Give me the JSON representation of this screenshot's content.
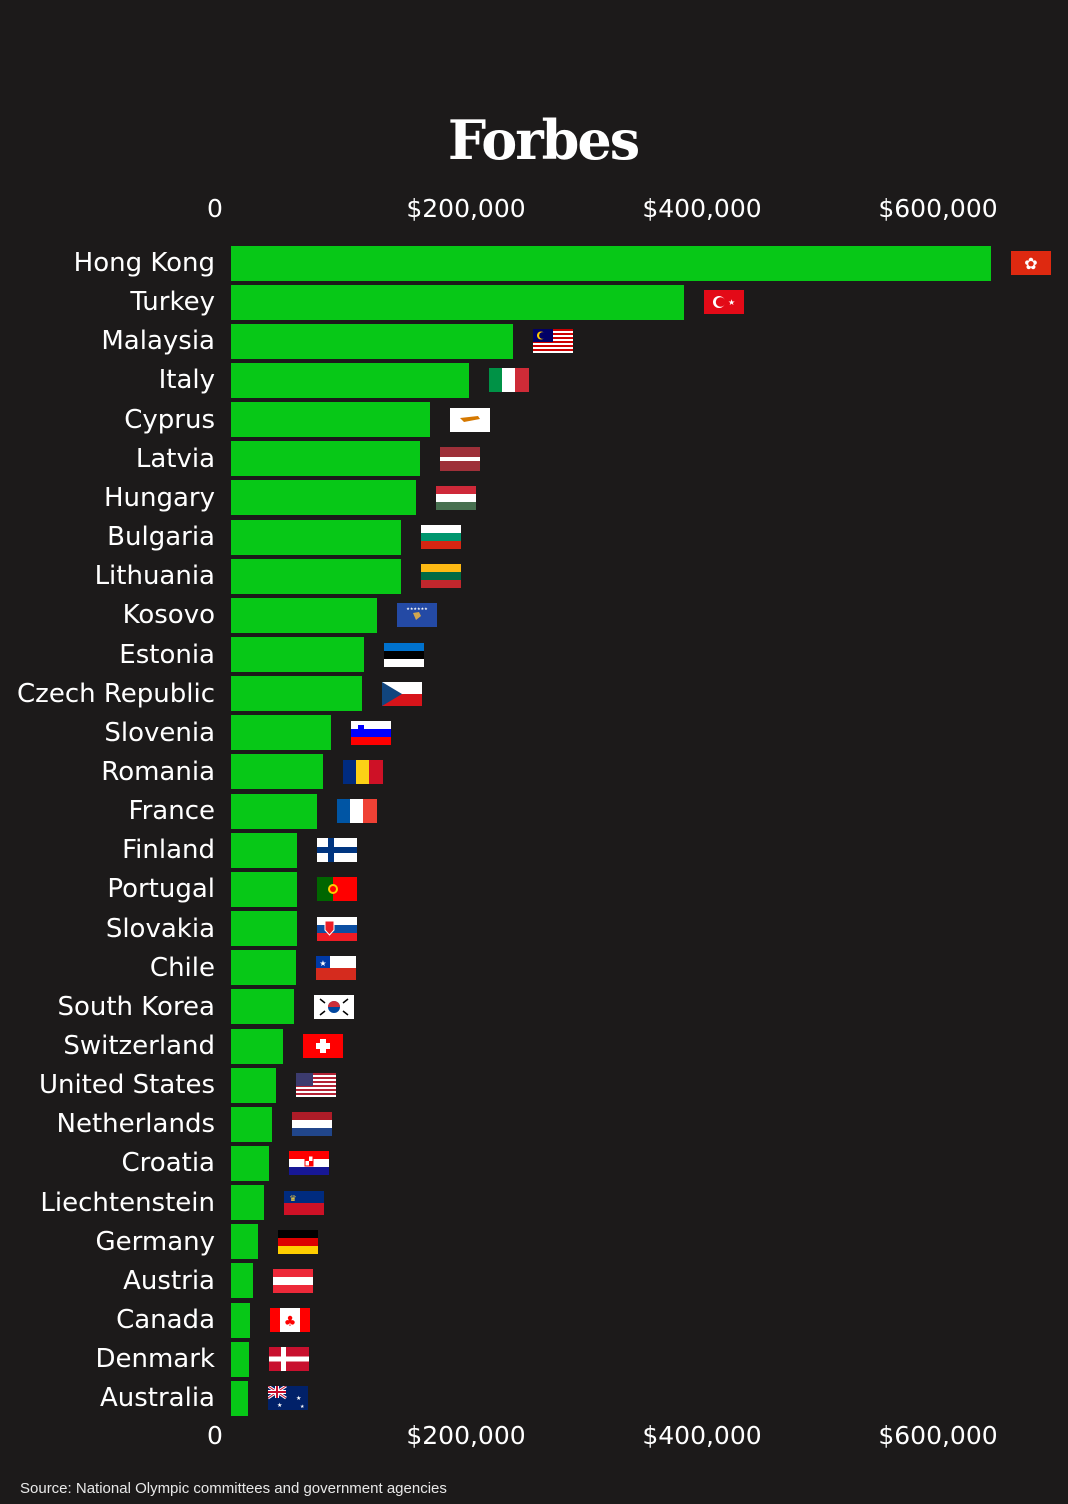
{
  "header": {
    "logo": "Forbes"
  },
  "source": "Source: National Olympic committees and government agencies",
  "chart_data": {
    "type": "bar",
    "orientation": "horizontal",
    "xlim": [
      0,
      690000
    ],
    "ticks": [
      {
        "value": 0,
        "label": "0"
      },
      {
        "value": 200000,
        "label": "$200,000"
      },
      {
        "value": 400000,
        "label": "$400,000"
      },
      {
        "value": 600000,
        "label": "$600,000"
      }
    ],
    "categories": [
      "Hong Kong",
      "Turkey",
      "Malaysia",
      "Italy",
      "Cyprus",
      "Latvia",
      "Hungary",
      "Bulgaria",
      "Lithuania",
      "Kosovo",
      "Estonia",
      "Czech Republic",
      "Slovenia",
      "Romania",
      "France",
      "Finland",
      "Portugal",
      "Slovakia",
      "Chile",
      "South Korea",
      "Switzerland",
      "United States",
      "Netherlands",
      "Croatia",
      "Liechtenstein",
      "Germany",
      "Austria",
      "Canada",
      "Denmark",
      "Australia"
    ],
    "values": [
      644000,
      384000,
      239000,
      202000,
      169000,
      160000,
      157000,
      144000,
      144000,
      124000,
      113000,
      111000,
      85000,
      78000,
      73000,
      56000,
      56000,
      56000,
      55000,
      53000,
      44000,
      38000,
      35000,
      32000,
      28000,
      23000,
      19000,
      16000,
      15000,
      14000
    ],
    "bar_color": "#07c817",
    "flags": [
      "hong-kong-flag",
      "turkey-flag",
      "malaysia-flag",
      "italy-flag",
      "cyprus-flag",
      "latvia-flag",
      "hungary-flag",
      "bulgaria-flag",
      "lithuania-flag",
      "kosovo-flag",
      "estonia-flag",
      "czech-republic-flag",
      "slovenia-flag",
      "romania-flag",
      "france-flag",
      "finland-flag",
      "portugal-flag",
      "slovakia-flag",
      "chile-flag",
      "south-korea-flag",
      "switzerland-flag",
      "united-states-flag",
      "netherlands-flag",
      "croatia-flag",
      "liechtenstein-flag",
      "germany-flag",
      "austria-flag",
      "canada-flag",
      "denmark-flag",
      "australia-flag"
    ]
  }
}
